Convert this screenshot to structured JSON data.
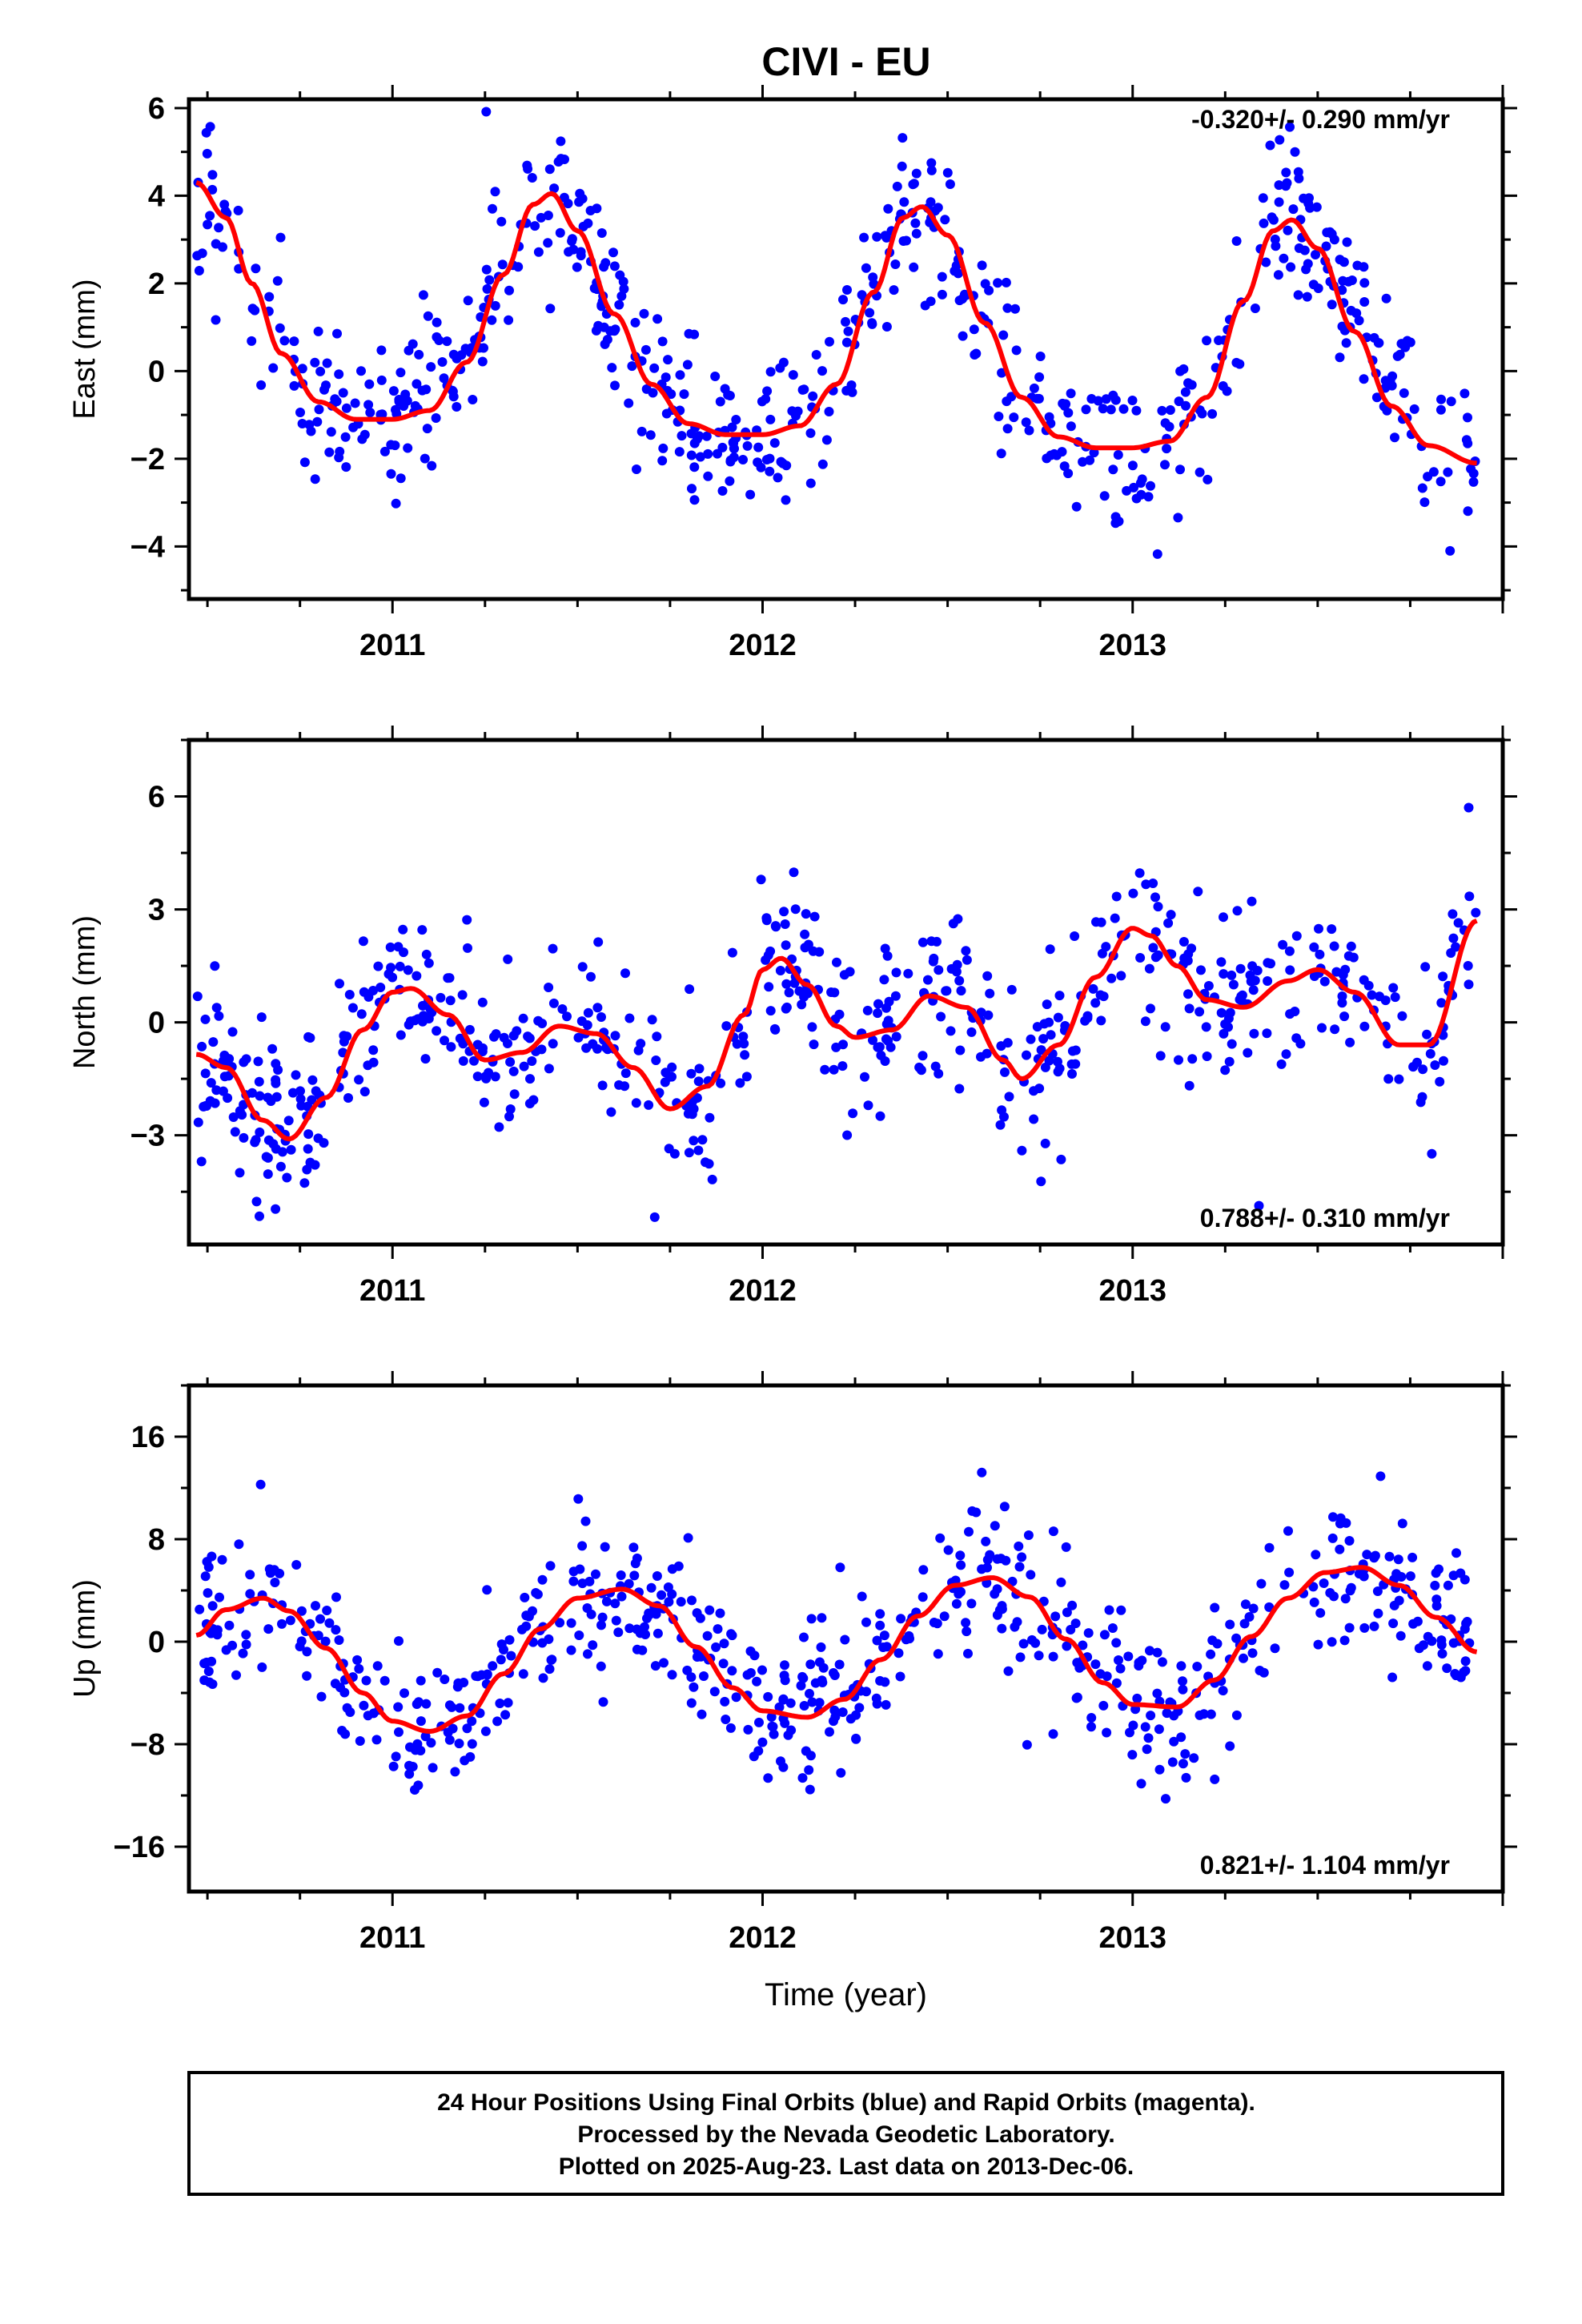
{
  "page": {
    "title": "CIVI - EU"
  },
  "footer": {
    "line1": "24 Hour Positions Using Final Orbits (blue) and Rapid Orbits (magenta).",
    "line2": "Processed by the Nevada Geodetic Laboratory.",
    "line3": "Plotted on 2025-Aug-23. Last data on 2013-Dec-06."
  },
  "colors": {
    "points": "#0000ff",
    "fit": "#ff0000",
    "frame": "#000000"
  },
  "chart_data": [
    {
      "type": "scatter",
      "title": "CIVI - EU",
      "ylabel": "East (mm)",
      "xlabel": "",
      "rate_label": "-0.320+/- 0.290 mm/yr",
      "xlim": [
        2010.45,
        2014.0
      ],
      "ylim": [
        -5.2,
        6.2
      ],
      "xticks": [
        2011,
        2012,
        2013
      ],
      "yticks": [
        -4,
        -2,
        0,
        2,
        4,
        6
      ],
      "ytick_labels": [
        "−4",
        "−2",
        "0",
        "2",
        "4",
        "6"
      ],
      "grid": false,
      "series": [
        {
          "kind": "points",
          "color": "#0000ff",
          "x_range": [
            2010.47,
            2013.93
          ],
          "count": 640,
          "seed": 11
        },
        {
          "kind": "fit",
          "color": "#ff0000",
          "x": [
            2010.47,
            2010.55,
            2010.62,
            2010.7,
            2010.8,
            2010.9,
            2011.0,
            2011.1,
            2011.2,
            2011.3,
            2011.38,
            2011.43,
            2011.5,
            2011.6,
            2011.7,
            2011.8,
            2011.9,
            2012.0,
            2012.1,
            2012.2,
            2012.3,
            2012.38,
            2012.43,
            2012.5,
            2012.6,
            2012.7,
            2012.8,
            2012.9,
            2013.0,
            2013.1,
            2013.2,
            2013.3,
            2013.38,
            2013.43,
            2013.5,
            2013.6,
            2013.7,
            2013.8,
            2013.93
          ],
          "y": [
            4.3,
            3.5,
            2.0,
            0.4,
            -0.7,
            -1.1,
            -1.1,
            -0.9,
            0.2,
            2.2,
            3.8,
            4.05,
            3.2,
            1.3,
            -0.3,
            -1.2,
            -1.45,
            -1.45,
            -1.25,
            -0.3,
            1.8,
            3.5,
            3.75,
            3.1,
            1.1,
            -0.6,
            -1.5,
            -1.75,
            -1.75,
            -1.6,
            -0.6,
            1.6,
            3.2,
            3.45,
            2.8,
            0.9,
            -0.8,
            -1.7,
            -2.1
          ]
        }
      ]
    },
    {
      "type": "scatter",
      "ylabel": "North (mm)",
      "xlabel": "",
      "rate_label": "0.788+/- 0.310 mm/yr",
      "xlim": [
        2010.45,
        2014.0
      ],
      "ylim": [
        -5.9,
        7.5
      ],
      "xticks": [
        2011,
        2012,
        2013
      ],
      "yticks": [
        -3,
        0,
        3,
        6
      ],
      "ytick_labels": [
        "−3",
        "0",
        "3",
        "6"
      ],
      "grid": false,
      "series": [
        {
          "kind": "points",
          "color": "#0000ff",
          "x_range": [
            2010.47,
            2013.93
          ],
          "count": 640,
          "seed": 23
        },
        {
          "kind": "fit",
          "color": "#ff0000",
          "x": [
            2010.47,
            2010.55,
            2010.65,
            2010.72,
            2010.82,
            2010.92,
            2011.0,
            2011.05,
            2011.15,
            2011.25,
            2011.35,
            2011.45,
            2011.55,
            2011.65,
            2011.75,
            2011.85,
            2011.95,
            2012.0,
            2012.05,
            2012.12,
            2012.2,
            2012.25,
            2012.35,
            2012.45,
            2012.55,
            2012.65,
            2012.7,
            2012.8,
            2012.9,
            2013.0,
            2013.05,
            2013.12,
            2013.2,
            2013.3,
            2013.42,
            2013.5,
            2013.6,
            2013.72,
            2013.8,
            2013.93
          ],
          "y": [
            -0.85,
            -1.2,
            -2.6,
            -3.1,
            -2.0,
            -0.2,
            0.8,
            0.9,
            0.2,
            -1.0,
            -0.8,
            -0.1,
            -0.3,
            -1.2,
            -2.3,
            -1.7,
            0.2,
            1.4,
            1.7,
            1.0,
            -0.1,
            -0.4,
            -0.2,
            0.7,
            0.4,
            -1.0,
            -1.5,
            -0.6,
            1.2,
            2.5,
            2.3,
            1.5,
            0.6,
            0.4,
            1.1,
            1.4,
            0.8,
            -0.6,
            -0.6,
            2.7
          ]
        }
      ]
    },
    {
      "type": "scatter",
      "ylabel": "Up (mm)",
      "xlabel": "Time (year)",
      "rate_label": "0.821+/- 1.104 mm/yr",
      "xlim": [
        2010.45,
        2014.0
      ],
      "ylim": [
        -19.5,
        20.0
      ],
      "xticks": [
        2011,
        2012,
        2013
      ],
      "yticks": [
        -16,
        -8,
        0,
        8,
        16
      ],
      "ytick_labels": [
        "−16",
        "−8",
        "0",
        "8",
        "16"
      ],
      "grid": false,
      "series": [
        {
          "kind": "points",
          "color": "#0000ff",
          "x_range": [
            2010.47,
            2013.93
          ],
          "count": 640,
          "seed": 37
        },
        {
          "kind": "fit",
          "color": "#ff0000",
          "x": [
            2010.47,
            2010.55,
            2010.65,
            2010.72,
            2010.82,
            2010.92,
            2011.0,
            2011.1,
            2011.2,
            2011.3,
            2011.4,
            2011.5,
            2011.62,
            2011.72,
            2011.82,
            2011.92,
            2012.0,
            2012.12,
            2012.22,
            2012.32,
            2012.42,
            2012.52,
            2012.62,
            2012.72,
            2012.82,
            2012.92,
            2013.0,
            2013.12,
            2013.22,
            2013.32,
            2013.42,
            2013.52,
            2013.62,
            2013.72,
            2013.82,
            2013.93
          ],
          "y": [
            0.5,
            2.5,
            3.4,
            2.4,
            -0.5,
            -4.0,
            -6.2,
            -7.0,
            -5.8,
            -2.5,
            1.0,
            3.4,
            4.1,
            2.8,
            -0.4,
            -3.6,
            -5.4,
            -5.9,
            -4.5,
            -1.4,
            2.0,
            4.4,
            5.0,
            3.5,
            0.2,
            -3.2,
            -4.9,
            -5.1,
            -3.0,
            0.4,
            3.4,
            5.4,
            5.8,
            4.4,
            1.9,
            -0.8
          ]
        }
      ]
    }
  ]
}
